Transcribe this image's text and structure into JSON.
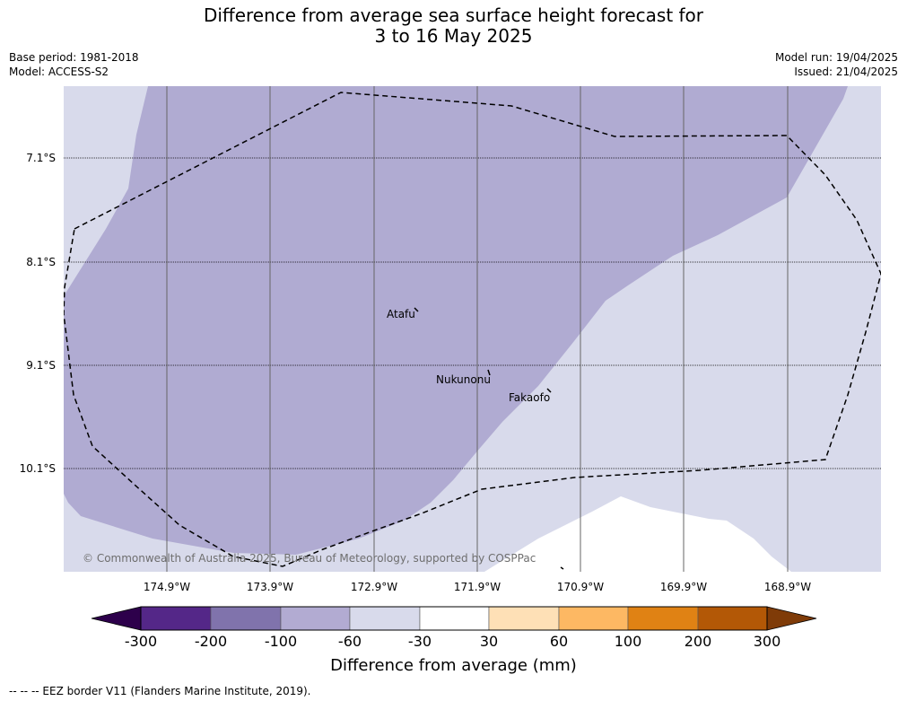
{
  "title_line1": "Difference from average sea surface height forecast for",
  "title_line2": "3 to 16 May 2025",
  "base_period": "Base period: 1981-2018",
  "model": "Model: ACCESS-S2",
  "model_run": "Model run: 19/04/2025",
  "issued": "Issued: 21/04/2025",
  "lat_labels": [
    "7.1°S",
    "8.1°S",
    "9.1°S",
    "10.1°S"
  ],
  "lon_labels": [
    "174.9°W",
    "173.9°W",
    "172.9°W",
    "171.9°W",
    "170.9°W",
    "169.9°W",
    "168.9°W"
  ],
  "places": {
    "atafu": "Atafu",
    "nukunonu": "Nukunonu",
    "fakaofo": "Fakaofo"
  },
  "copyright": "© Commonwealth of Australia 2025, Bureau of Meteorology, supported by COSPPac",
  "colorbar": {
    "title": "Difference from average (mm)",
    "ticks": [
      "-300",
      "-200",
      "-100",
      "-60",
      "-30",
      "30",
      "60",
      "100",
      "200",
      "300"
    ],
    "colors": [
      "#2d004b",
      "#542788",
      "#8073ac",
      "#b2abd2",
      "#d8daeb",
      "#ffffff",
      "#fee0b6",
      "#fdb863",
      "#e08214",
      "#b35806",
      "#7f3b08"
    ]
  },
  "footer": "--  --  -- EEZ border V11 (Flanders Marine Institute, 2019)."
}
